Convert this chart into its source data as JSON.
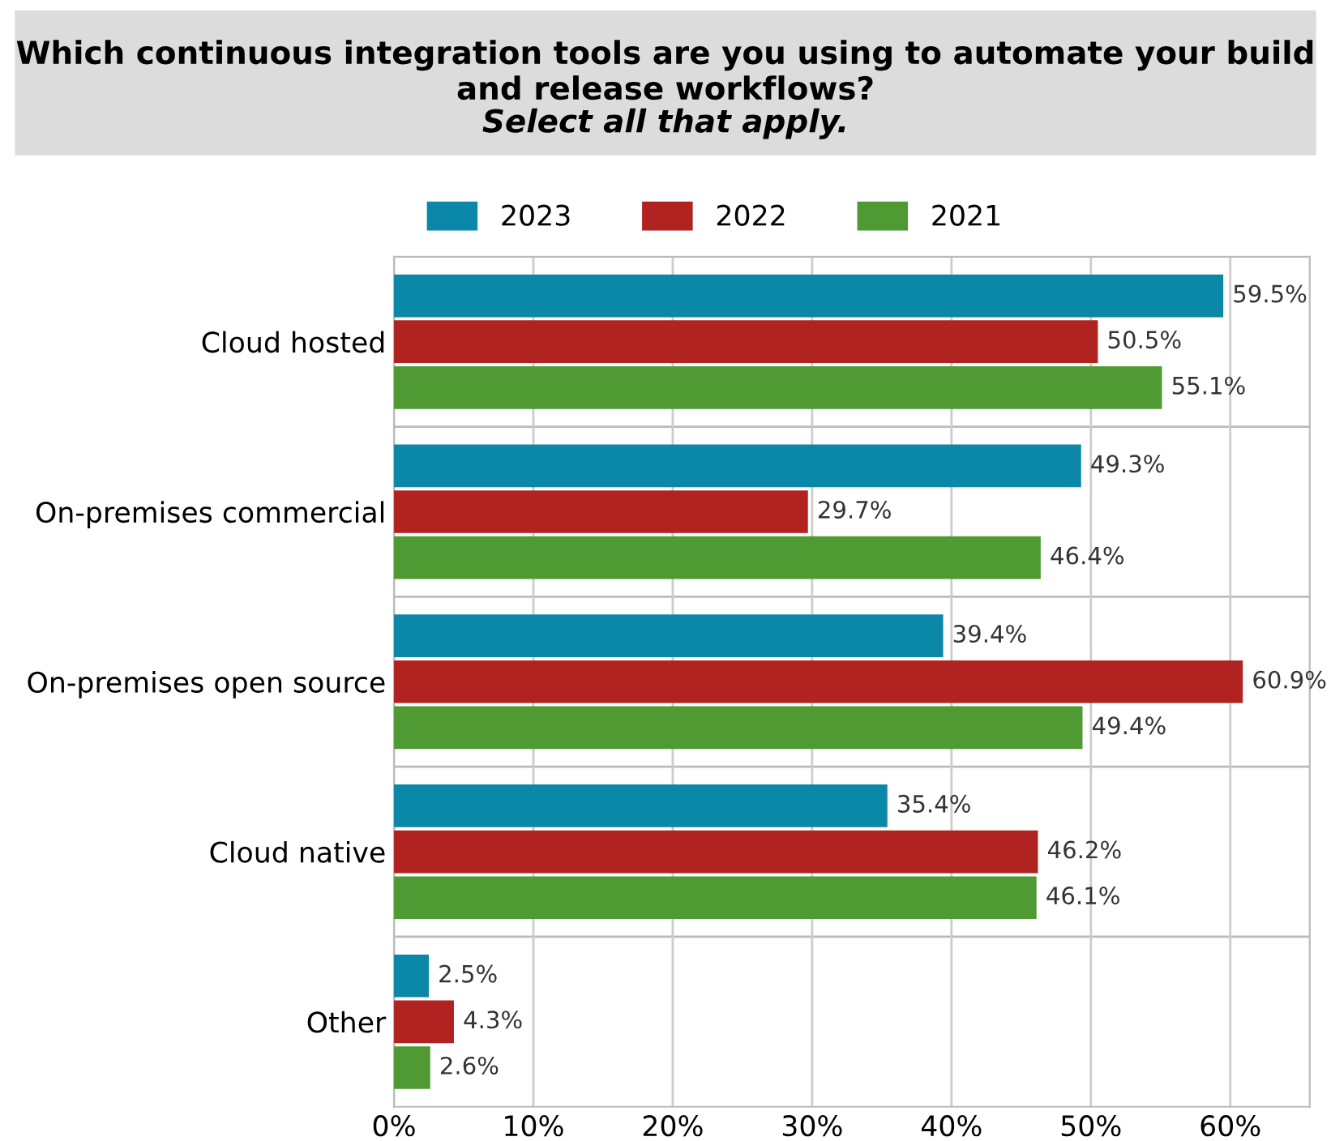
{
  "chart_data": {
    "type": "bar",
    "orientation": "horizontal",
    "title": "Which continuous integration tools are you using to automate your build and release workflows?",
    "subtitle": "Select all that apply.",
    "categories": [
      "Cloud hosted",
      "On-premises commercial",
      "On-premises open source",
      "Cloud native",
      "Other"
    ],
    "series": [
      {
        "name": "2023",
        "color": "#0b87a7",
        "values": [
          59.5,
          49.3,
          39.4,
          35.4,
          2.5
        ],
        "value_labels": [
          "59.5%",
          "49.3%",
          "39.4%",
          "35.4%",
          "2.5%"
        ]
      },
      {
        "name": "2022",
        "color": "#b02320",
        "values": [
          50.5,
          29.7,
          60.9,
          46.2,
          4.3
        ],
        "value_labels": [
          "50.5%",
          "29.7%",
          "60.9%",
          "46.2%",
          "4.3%"
        ]
      },
      {
        "name": "2021",
        "color": "#4f9a33",
        "values": [
          55.1,
          46.4,
          49.4,
          46.1,
          2.6
        ],
        "value_labels": [
          "55.1%",
          "46.4%",
          "49.4%",
          "46.1%",
          "2.6%"
        ]
      }
    ],
    "xlim": [
      0,
      65.7
    ],
    "xticks": [
      {
        "value": 0,
        "label": "0%"
      },
      {
        "value": 10,
        "label": "10%"
      },
      {
        "value": 20,
        "label": "20%"
      },
      {
        "value": 30,
        "label": "30%"
      },
      {
        "value": 40,
        "label": "40%"
      },
      {
        "value": 50,
        "label": "50%"
      },
      {
        "value": 60,
        "label": "60%"
      }
    ],
    "grid": "x",
    "legend": "top"
  }
}
